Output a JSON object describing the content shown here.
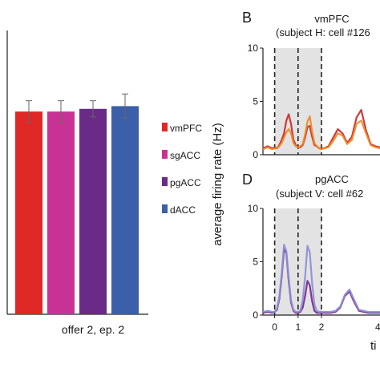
{
  "chart_data": [
    {
      "type": "bar",
      "xlabel": "offer 2, ep. 2",
      "categories": [
        "vmPFC",
        "sgACC",
        "pgACC",
        "dACC"
      ],
      "values": [
        0.75,
        0.75,
        0.76,
        0.77
      ],
      "errors": [
        0.04,
        0.04,
        0.03,
        0.045
      ],
      "ylim": [
        0,
        1.05
      ],
      "colors": [
        "#e02826",
        "#c83294",
        "#6a2b88",
        "#3b5fa8"
      ],
      "legend": {
        "placement": "right",
        "entries": [
          {
            "label": "vmPFC",
            "color": "#e02826"
          },
          {
            "label": "sgACC",
            "color": "#c83294"
          },
          {
            "label": "pgACC",
            "color": "#6a2b88"
          },
          {
            "label": "dACC",
            "color": "#3b5fa8"
          }
        ]
      }
    },
    {
      "type": "line",
      "panel_letter": "B",
      "title": "vmPFC",
      "subtitle": "(subject H: cell #126",
      "ylim": [
        0,
        10
      ],
      "yticks": [
        "10",
        "5",
        "0"
      ],
      "xlim": [
        -0.5,
        4.5
      ],
      "epochs": [
        [
          0,
          1
        ],
        [
          1,
          2
        ]
      ],
      "series": [
        {
          "color": "#cc2a2a",
          "x": [
            -0.5,
            -0.3,
            -0.1,
            0,
            0.1,
            0.2,
            0.3,
            0.4,
            0.5,
            0.6,
            0.7,
            0.8,
            0.9,
            1.0,
            1.1,
            1.2,
            1.3,
            1.4,
            1.5,
            1.6,
            1.7,
            1.8,
            1.9,
            2.0,
            2.1,
            2.3,
            2.5,
            2.7,
            2.9,
            3.1,
            3.3,
            3.5,
            3.7,
            3.9,
            4.1,
            4.3,
            4.5
          ],
          "y": [
            0.6,
            0.8,
            0.6,
            0.7,
            0.6,
            0.9,
            1.4,
            2.0,
            3.2,
            3.8,
            2.9,
            1.4,
            0.9,
            0.7,
            0.7,
            0.9,
            1.6,
            2.6,
            2.7,
            1.7,
            0.9,
            0.8,
            0.6,
            0.6,
            0.6,
            0.8,
            1.6,
            2.4,
            2.0,
            1.1,
            1.7,
            3.5,
            4.2,
            2.3,
            1.0,
            0.8,
            0.7
          ]
        },
        {
          "color": "#ef8a24",
          "x": [
            -0.5,
            -0.3,
            -0.1,
            0,
            0.1,
            0.2,
            0.3,
            0.4,
            0.5,
            0.6,
            0.7,
            0.8,
            0.9,
            1.0,
            1.1,
            1.2,
            1.3,
            1.4,
            1.5,
            1.6,
            1.7,
            1.8,
            1.9,
            2.0,
            2.1,
            2.3,
            2.5,
            2.7,
            2.9,
            3.1,
            3.3,
            3.5,
            3.7,
            3.9,
            4.1,
            4.3,
            4.5
          ],
          "y": [
            0.5,
            0.7,
            0.5,
            0.6,
            0.6,
            0.8,
            1.1,
            1.6,
            2.1,
            2.4,
            2.0,
            1.1,
            0.8,
            0.7,
            0.8,
            1.0,
            1.9,
            3.1,
            3.6,
            2.2,
            1.1,
            0.8,
            0.6,
            0.5,
            0.6,
            0.7,
            1.3,
            2.0,
            1.8,
            1.0,
            1.4,
            2.9,
            3.2,
            2.0,
            0.9,
            0.7,
            0.6
          ]
        }
      ]
    },
    {
      "type": "line",
      "panel_letter": "D",
      "title": "pgACC",
      "subtitle": "(subject V: cell #62",
      "ylim": [
        0,
        10
      ],
      "yticks": [
        "10",
        "5",
        "0"
      ],
      "xlim": [
        -0.5,
        4.5
      ],
      "xticks": [
        "0",
        "1",
        "2"
      ],
      "epochs": [
        [
          0,
          1
        ],
        [
          1,
          2
        ]
      ],
      "series": [
        {
          "color": "#7a2a8c",
          "x": [
            -0.5,
            -0.3,
            -0.1,
            0,
            0.1,
            0.2,
            0.3,
            0.4,
            0.5,
            0.6,
            0.7,
            0.8,
            0.9,
            1.0,
            1.1,
            1.2,
            1.3,
            1.4,
            1.5,
            1.6,
            1.7,
            1.8,
            1.9,
            2.0,
            2.2,
            2.4,
            2.6,
            2.8,
            3.0,
            3.2,
            3.4,
            3.6,
            3.8,
            4.0,
            4.2,
            4.5
          ],
          "y": [
            0.2,
            0.3,
            0.2,
            0.3,
            0.5,
            1.5,
            3.6,
            6.2,
            5.8,
            3.2,
            1.2,
            0.4,
            0.2,
            0.2,
            0.3,
            0.7,
            1.8,
            3.2,
            2.8,
            1.3,
            0.4,
            0.2,
            0.2,
            0.2,
            0.2,
            0.2,
            0.3,
            0.7,
            1.8,
            2.2,
            1.2,
            0.4,
            0.3,
            0.2,
            0.2,
            0.2
          ]
        },
        {
          "color": "#8a8fd6",
          "x": [
            -0.5,
            -0.3,
            -0.1,
            0,
            0.1,
            0.2,
            0.3,
            0.4,
            0.5,
            0.6,
            0.7,
            0.8,
            0.9,
            1.0,
            1.1,
            1.2,
            1.3,
            1.4,
            1.5,
            1.6,
            1.7,
            1.8,
            1.9,
            2.0,
            2.2,
            2.4,
            2.6,
            2.8,
            3.0,
            3.2,
            3.4,
            3.6,
            3.8,
            4.0,
            4.2,
            4.5
          ],
          "y": [
            0.3,
            0.4,
            0.3,
            0.3,
            0.6,
            1.7,
            3.9,
            6.6,
            6.0,
            3.5,
            1.4,
            0.5,
            0.3,
            0.3,
            0.4,
            1.4,
            3.6,
            6.5,
            5.9,
            3.0,
            1.0,
            0.4,
            0.3,
            0.3,
            0.3,
            0.3,
            0.4,
            0.8,
            1.9,
            2.4,
            1.4,
            0.5,
            0.4,
            0.3,
            0.3,
            0.3
          ]
        }
      ]
    }
  ],
  "shared": {
    "ylabel": "average firing rate (Hz)",
    "xlabel_fragment": "ti",
    "x_partial_tick": "4"
  }
}
